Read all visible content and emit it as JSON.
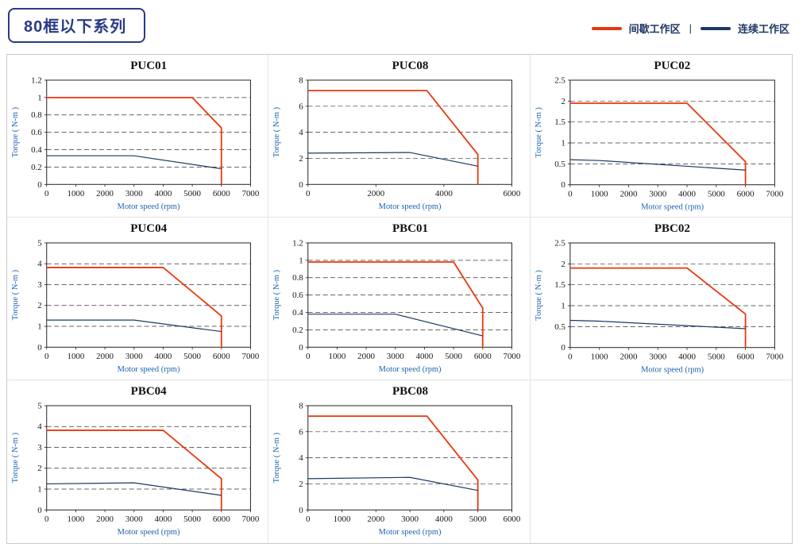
{
  "page": {
    "title": "80框以下系列"
  },
  "legend": {
    "items": [
      {
        "label": "间歇工作区",
        "color": "#e8380d"
      },
      {
        "label": "连续工作区",
        "color": "#1f3864"
      }
    ],
    "separator": "|"
  },
  "colors": {
    "header_text": "#2a3b85",
    "axis_label": "#1e63b0",
    "tick_label": "#1a1a1a",
    "grid_line": "#333333",
    "plot_border": "#222222",
    "intermittent": "#e8380d",
    "continuous": "#1f3864"
  },
  "chart_data": [
    {
      "type": "line",
      "title": "PUC01",
      "xlabel": "Motor speed (rpm)",
      "ylabel": "Torque ( N-m )",
      "xlim": [
        0,
        7000
      ],
      "ylim": [
        0,
        1.2
      ],
      "xticks": [
        0,
        1000,
        2000,
        3000,
        4000,
        5000,
        6000,
        7000
      ],
      "yticks": [
        0,
        0.2,
        0.4,
        0.6,
        0.8,
        1,
        1.2
      ],
      "grid": "dashed-horizontal",
      "legend_position": "none",
      "series": [
        {
          "name": "间歇工作区",
          "color": "#e8380d",
          "points": [
            [
              0,
              1.0
            ],
            [
              5000,
              1.0
            ],
            [
              6000,
              0.65
            ],
            [
              6000,
              0
            ]
          ]
        },
        {
          "name": "连续工作区",
          "color": "#1f3864",
          "points": [
            [
              0,
              0.33
            ],
            [
              3000,
              0.33
            ],
            [
              6000,
              0.18
            ]
          ]
        }
      ]
    },
    {
      "type": "line",
      "title": "PUC08",
      "xlabel": "Motor speed (rpm)",
      "ylabel": "Torque ( N-m )",
      "xlim": [
        0,
        6000
      ],
      "ylim": [
        0,
        8
      ],
      "xticks": [
        0,
        2000,
        4000,
        6000
      ],
      "yticks": [
        0,
        2,
        4,
        6,
        8
      ],
      "grid": "dashed-horizontal",
      "legend_position": "none",
      "series": [
        {
          "name": "间歇工作区",
          "color": "#e8380d",
          "points": [
            [
              0,
              7.2
            ],
            [
              3500,
              7.2
            ],
            [
              5000,
              2.3
            ],
            [
              5000,
              0
            ]
          ]
        },
        {
          "name": "连续工作区",
          "color": "#1f3864",
          "points": [
            [
              0,
              2.4
            ],
            [
              3000,
              2.45
            ],
            [
              5000,
              1.4
            ]
          ]
        }
      ]
    },
    {
      "type": "line",
      "title": "PUC02",
      "xlabel": "Motor speed (rpm)",
      "ylabel": "Torque ( N-m )",
      "xlim": [
        0,
        7000
      ],
      "ylim": [
        0,
        2.5
      ],
      "xticks": [
        0,
        1000,
        2000,
        3000,
        4000,
        5000,
        6000,
        7000
      ],
      "yticks": [
        0,
        0.5,
        1,
        1.5,
        2,
        2.5
      ],
      "grid": "dashed-horizontal",
      "legend_position": "none",
      "series": [
        {
          "name": "间歇工作区",
          "color": "#e8380d",
          "points": [
            [
              0,
              1.95
            ],
            [
              4000,
              1.95
            ],
            [
              6000,
              0.55
            ],
            [
              6000,
              0
            ]
          ]
        },
        {
          "name": "连续工作区",
          "color": "#1f3864",
          "points": [
            [
              0,
              0.6
            ],
            [
              1000,
              0.58
            ],
            [
              6000,
              0.35
            ]
          ]
        }
      ]
    },
    {
      "type": "line",
      "title": "PUC04",
      "xlabel": "Motor speed (rpm)",
      "ylabel": "Torque ( N-m )",
      "xlim": [
        0,
        7000
      ],
      "ylim": [
        0,
        5
      ],
      "xticks": [
        0,
        1000,
        2000,
        3000,
        4000,
        5000,
        6000,
        7000
      ],
      "yticks": [
        0,
        1,
        2,
        3,
        4,
        5
      ],
      "grid": "dashed-horizontal",
      "legend_position": "none",
      "series": [
        {
          "name": "间歇工作区",
          "color": "#e8380d",
          "points": [
            [
              0,
              3.82
            ],
            [
              4000,
              3.82
            ],
            [
              6000,
              1.5
            ],
            [
              6000,
              0
            ]
          ]
        },
        {
          "name": "连续工作区",
          "color": "#1f3864",
          "points": [
            [
              0,
              1.3
            ],
            [
              3000,
              1.3
            ],
            [
              6000,
              0.75
            ]
          ]
        }
      ]
    },
    {
      "type": "line",
      "title": "PBC01",
      "xlabel": "Motor speed (rpm)",
      "ylabel": "Torque ( N-m )",
      "xlim": [
        0,
        7000
      ],
      "ylim": [
        0,
        1.2
      ],
      "xticks": [
        0,
        1000,
        2000,
        3000,
        4000,
        5000,
        6000,
        7000
      ],
      "yticks": [
        0,
        0.2,
        0.4,
        0.6,
        0.8,
        1,
        1.2
      ],
      "grid": "dashed-horizontal",
      "legend_position": "none",
      "series": [
        {
          "name": "间歇工作区",
          "color": "#e8380d",
          "points": [
            [
              0,
              0.98
            ],
            [
              5000,
              0.98
            ],
            [
              6000,
              0.45
            ],
            [
              6000,
              0
            ]
          ]
        },
        {
          "name": "连续工作区",
          "color": "#1f3864",
          "points": [
            [
              0,
              0.38
            ],
            [
              3000,
              0.38
            ],
            [
              6000,
              0.13
            ]
          ]
        }
      ]
    },
    {
      "type": "line",
      "title": "PBC02",
      "xlabel": "Motor speed (rpm)",
      "ylabel": "Torque ( N-m )",
      "xlim": [
        0,
        7000
      ],
      "ylim": [
        0,
        2.5
      ],
      "xticks": [
        0,
        1000,
        2000,
        3000,
        4000,
        5000,
        6000,
        7000
      ],
      "yticks": [
        0,
        0.5,
        1,
        1.5,
        2,
        2.5
      ],
      "grid": "dashed-horizontal",
      "legend_position": "none",
      "series": [
        {
          "name": "间歇工作区",
          "color": "#e8380d",
          "points": [
            [
              0,
              1.9
            ],
            [
              4000,
              1.9
            ],
            [
              6000,
              0.8
            ],
            [
              6000,
              0
            ]
          ]
        },
        {
          "name": "连续工作区",
          "color": "#1f3864",
          "points": [
            [
              0,
              0.65
            ],
            [
              1000,
              0.63
            ],
            [
              6000,
              0.45
            ]
          ]
        }
      ]
    },
    {
      "type": "line",
      "title": "PBC04",
      "xlabel": "Motor speed (rpm)",
      "ylabel": "Torque ( N-m )",
      "xlim": [
        0,
        7000
      ],
      "ylim": [
        0,
        5
      ],
      "xticks": [
        0,
        1000,
        2000,
        3000,
        4000,
        5000,
        6000,
        7000
      ],
      "yticks": [
        0,
        1,
        2,
        3,
        4,
        5
      ],
      "grid": "dashed-horizontal",
      "legend_position": "none",
      "series": [
        {
          "name": "间歇工作区",
          "color": "#e8380d",
          "points": [
            [
              0,
              3.82
            ],
            [
              4000,
              3.82
            ],
            [
              6000,
              1.5
            ],
            [
              6000,
              0
            ]
          ]
        },
        {
          "name": "连续工作区",
          "color": "#1f3864",
          "points": [
            [
              0,
              1.25
            ],
            [
              3000,
              1.3
            ],
            [
              6000,
              0.7
            ]
          ]
        }
      ]
    },
    {
      "type": "line",
      "title": "PBC08",
      "xlabel": "Motor speed (rpm)",
      "ylabel": "Torque ( N-m )",
      "xlim": [
        0,
        6000
      ],
      "ylim": [
        0,
        8
      ],
      "xticks": [
        0,
        1000,
        2000,
        3000,
        4000,
        5000,
        6000
      ],
      "yticks": [
        0,
        2,
        4,
        6,
        8
      ],
      "grid": "dashed-horizontal",
      "legend_position": "none",
      "series": [
        {
          "name": "间歇工作区",
          "color": "#e8380d",
          "points": [
            [
              0,
              7.2
            ],
            [
              3500,
              7.2
            ],
            [
              5000,
              2.3
            ],
            [
              5000,
              0
            ]
          ]
        },
        {
          "name": "连续工作区",
          "color": "#1f3864",
          "points": [
            [
              0,
              2.4
            ],
            [
              3000,
              2.5
            ],
            [
              5000,
              1.5
            ]
          ]
        }
      ]
    }
  ]
}
